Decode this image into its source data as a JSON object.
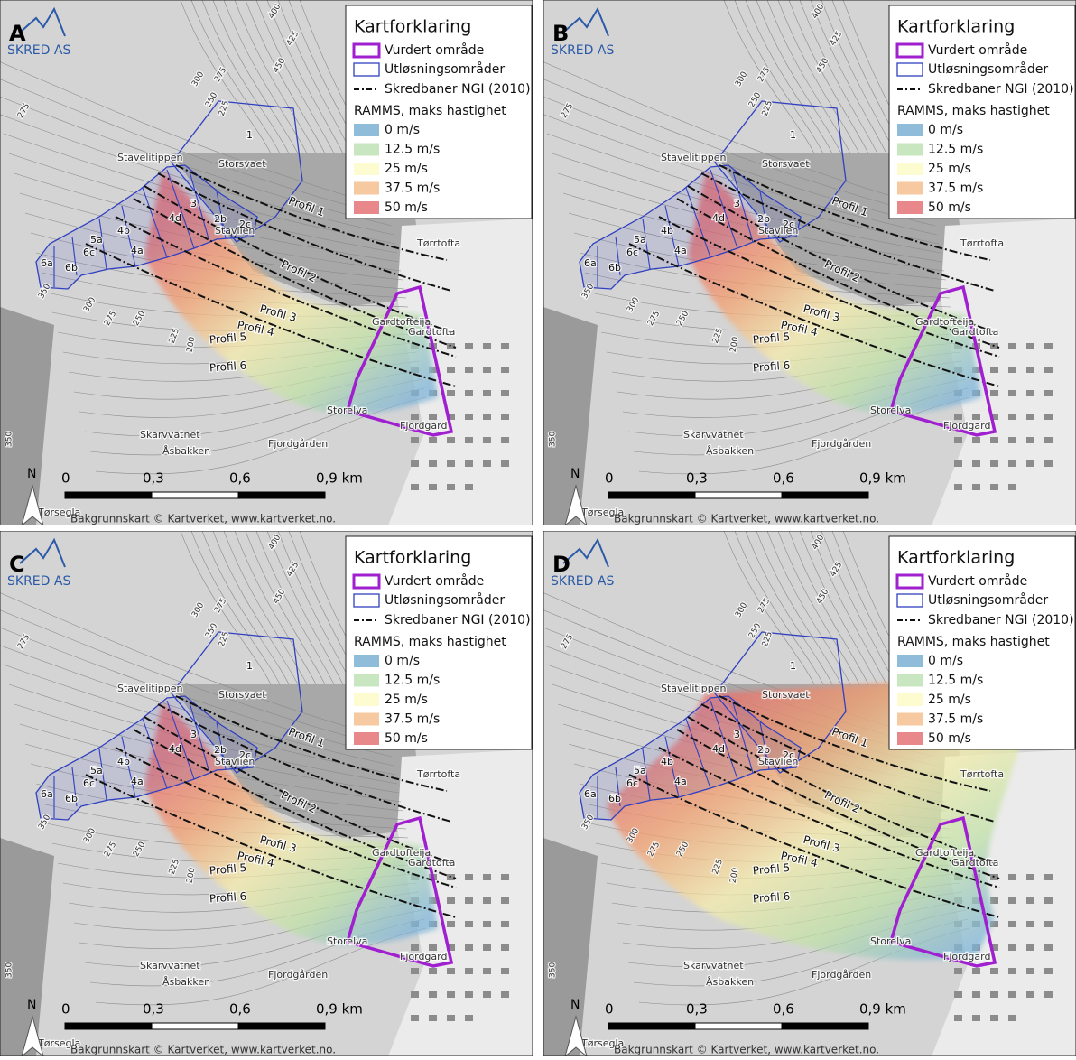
{
  "panels": [
    {
      "letter": "A"
    },
    {
      "letter": "B"
    },
    {
      "letter": "C"
    },
    {
      "letter": "D"
    }
  ],
  "logo": "SKRED AS",
  "legend": {
    "title": "Kartforklaring",
    "items": [
      "Vurdert område",
      "Utløsningsområder",
      "Skredbaner NGI (2010)"
    ],
    "ramms_title": "RAMMS, maks hastighet",
    "ramms": [
      "0 m/s",
      "12.5 m/s",
      "25 m/s",
      "37.5 m/s",
      "50 m/s"
    ]
  },
  "places": [
    "Stavelitippen",
    "Storsvaet",
    "Stavlien",
    "Tørrtofta",
    "Gardtofteija",
    "Gardtofta",
    "Storelva",
    "Fjordgard",
    "Skarvvatnet",
    "Åsbakken",
    "Fjordgården",
    "Tørsegla"
  ],
  "release_areas": [
    "1",
    "2b",
    "2c",
    "3",
    "4d",
    "4b",
    "5a",
    "4a",
    "6c",
    "6b",
    "6a"
  ],
  "profiles": [
    "Profil 1",
    "Profil 2",
    "Profil 3",
    "Profil 4",
    "Profil 5",
    "Profil 6"
  ],
  "contours": [
    "400",
    "425",
    "450",
    "300",
    "275",
    "250",
    "225",
    "275",
    "350",
    "300",
    "275",
    "250",
    "225",
    "200",
    "350"
  ],
  "scale": [
    "0",
    "0,3",
    "0,6",
    "0,9 km"
  ],
  "north": "N",
  "credit": "Bakgrunnskart © Kartverket, www.kartverket.no."
}
